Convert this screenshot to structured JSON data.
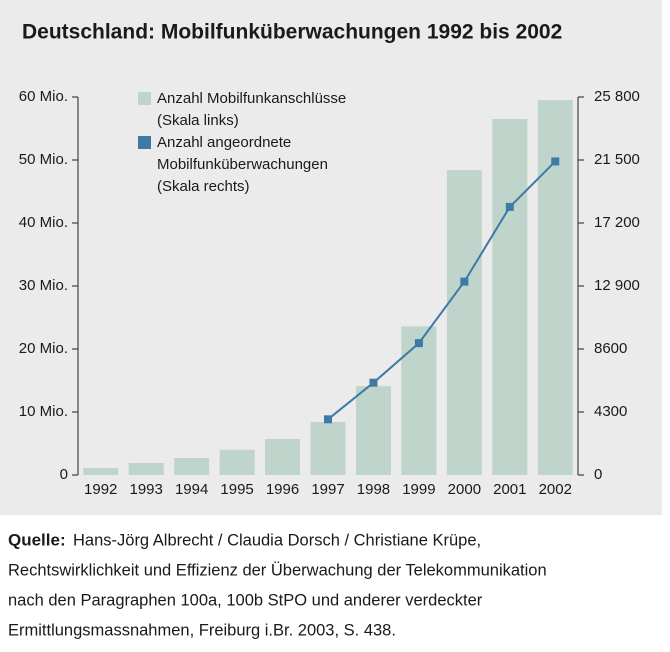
{
  "chart_data": {
    "type": "bar-line",
    "title": "Deutschland: Mobilfunküberwachungen 1992 bis 2002",
    "categories": [
      "1992",
      "1993",
      "1994",
      "1995",
      "1996",
      "1997",
      "1998",
      "1999",
      "2000",
      "2001",
      "2002"
    ],
    "series": [
      {
        "name": [
          "Anzahl Mobilfunkanschlüsse",
          "(Skala links)"
        ],
        "type": "bar",
        "color": "#bfd4ca",
        "axis": "y",
        "values": [
          1.1,
          1.9,
          2.7,
          4.0,
          5.7,
          8.4,
          14.1,
          23.6,
          48.4,
          56.5,
          59.5
        ]
      },
      {
        "name": [
          "Anzahl angeordnete",
          "Mobilfunküberwachungen",
          "(Skala rechts)"
        ],
        "type": "line",
        "color": "#3d7aa6",
        "axis": "y2",
        "values": [
          null,
          null,
          null,
          null,
          null,
          3800,
          6300,
          9000,
          13200,
          18300,
          21400
        ]
      }
    ],
    "ylim": [
      0,
      60
    ],
    "yticks": [
      0,
      {
        "value": 10,
        "label": "10 Mio."
      },
      {
        "value": 20,
        "label": "20 Mio."
      },
      {
        "value": 30,
        "label": "30 Mio."
      },
      {
        "value": 40,
        "label": "40 Mio."
      },
      {
        "value": 50,
        "label": "50 Mio."
      },
      {
        "value": 60,
        "label": "60 Mio."
      }
    ],
    "y2lim": [
      0,
      25800
    ],
    "y2ticks": [
      0,
      4300,
      {
        "value": 8600,
        "label": "8600"
      },
      {
        "value": 12900,
        "label": "12 900"
      },
      {
        "value": 17200,
        "label": "17 200"
      },
      {
        "value": 21500,
        "label": "21 500"
      },
      {
        "value": 25800,
        "label": "25 800"
      }
    ],
    "source": {
      "label": "Quelle:",
      "lines": [
        "Hans-Jörg Albrecht / Claudia Dorsch / Christiane Krüpe,",
        "Rechtswirklichkeit und Effizienz der Überwachung der Telekommunikation",
        "nach den Paragraphen 100a, 100b StPO und anderer verdeckter",
        "Ermittlungsmassnahmen, Freiburg i.Br. 2003, S. 438."
      ]
    }
  }
}
